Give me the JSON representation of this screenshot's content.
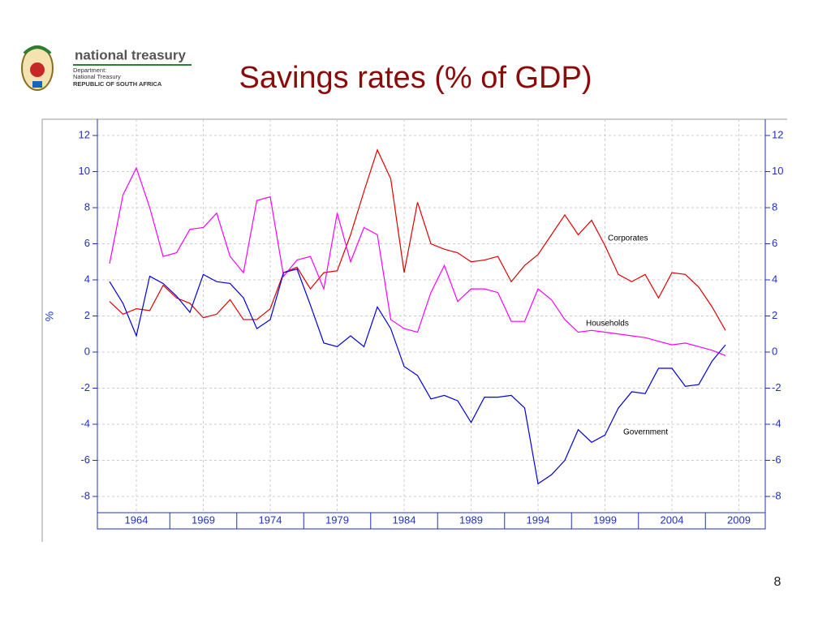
{
  "header": {
    "org": "national treasury",
    "department": "Department:",
    "dept_name": "National Treasury",
    "country": "REPUBLIC OF SOUTH AFRICA"
  },
  "page_number": "8",
  "chart_data": {
    "type": "line",
    "title": "Savings rates (% of GDP)",
    "y_label": "%",
    "x": [
      1962,
      1963,
      1964,
      1965,
      1966,
      1967,
      1968,
      1969,
      1970,
      1971,
      1972,
      1973,
      1974,
      1975,
      1976,
      1977,
      1978,
      1979,
      1980,
      1981,
      1982,
      1983,
      1984,
      1985,
      1986,
      1987,
      1988,
      1989,
      1990,
      1991,
      1992,
      1993,
      1994,
      1995,
      1996,
      1997,
      1998,
      1999,
      2000,
      2001,
      2002,
      2003,
      2004,
      2005,
      2006,
      2007,
      2008
    ],
    "series": [
      {
        "name": "Corporates",
        "color": "#e00000",
        "values": [
          2.8,
          2.1,
          2.4,
          2.3,
          3.7,
          3.0,
          2.7,
          1.9,
          2.1,
          2.9,
          1.8,
          1.8,
          2.4,
          4.4,
          4.7,
          3.5,
          4.4,
          4.5,
          6.5,
          8.9,
          11.2,
          9.6,
          4.4,
          8.3,
          6.0,
          5.7,
          5.5,
          5.0,
          5.1,
          5.3,
          3.9,
          4.8,
          5.4,
          6.5,
          7.6,
          6.5,
          7.3,
          5.9,
          4.3,
          3.9,
          4.3,
          3.0,
          4.4,
          4.3,
          3.6,
          2.5,
          1.2
        ]
      },
      {
        "name": "Households",
        "color": "#ff00ff",
        "values": [
          4.9,
          8.7,
          10.2,
          8.0,
          5.3,
          5.5,
          6.8,
          6.9,
          7.7,
          5.3,
          4.4,
          8.4,
          8.6,
          4.2,
          5.1,
          5.3,
          3.5,
          7.7,
          5.0,
          6.9,
          6.5,
          1.8,
          1.3,
          1.1,
          3.3,
          4.8,
          2.8,
          3.5,
          3.5,
          3.3,
          1.7,
          1.7,
          3.5,
          2.9,
          1.8,
          1.1,
          1.2,
          1.1,
          1.0,
          0.9,
          0.8,
          0.6,
          0.4,
          0.5,
          0.3,
          0.1,
          -0.2
        ]
      },
      {
        "name": "Government",
        "color": "#0000e0",
        "values": [
          3.9,
          2.7,
          0.9,
          4.2,
          3.8,
          3.1,
          2.2,
          4.3,
          3.9,
          3.8,
          3.0,
          1.3,
          1.8,
          4.4,
          4.6,
          2.6,
          0.5,
          0.3,
          0.9,
          0.3,
          2.5,
          1.3,
          -0.8,
          -1.3,
          -2.6,
          -2.4,
          -2.7,
          -3.9,
          -2.5,
          -2.5,
          -2.4,
          -3.1,
          -7.3,
          -6.8,
          -6.0,
          -4.3,
          -5.0,
          -4.6,
          -3.1,
          -2.2,
          -2.3,
          -0.9,
          -0.9,
          -1.9,
          -1.8,
          -0.5,
          0.4
        ]
      }
    ],
    "xlim": [
      1961.09,
      2010.97
    ],
    "xticks": [
      1964,
      1969,
      1974,
      1979,
      1984,
      1989,
      1994,
      1999,
      2004,
      2009
    ],
    "ylim": [
      -8.9,
      12.9
    ],
    "yticks": [
      -8,
      -6,
      -4,
      -2,
      0,
      2,
      4,
      6,
      8,
      10,
      12
    ],
    "grid": true
  }
}
